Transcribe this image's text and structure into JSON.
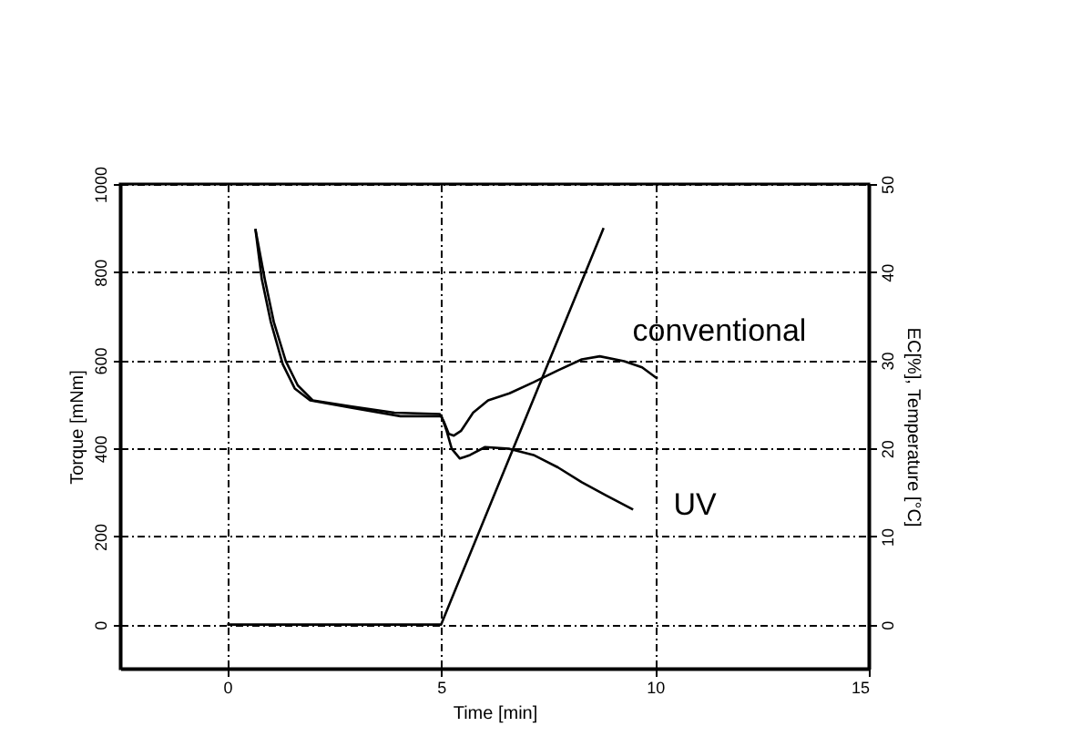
{
  "chart_data": {
    "type": "line",
    "xlabel": "Time [min]",
    "ylabel": "Torque [mNm]",
    "y2label": "EC[%], Temperature [°C]",
    "xlim": [
      -2.5,
      15
    ],
    "xticks": [
      0,
      5,
      10,
      15
    ],
    "ylim": [
      -100,
      1000
    ],
    "yticks": [
      0,
      200,
      400,
      600,
      800,
      1000
    ],
    "y2lim": [
      -5,
      50
    ],
    "y2ticks": [
      0,
      10,
      20,
      30,
      40,
      50
    ],
    "grid": true,
    "marker": "none",
    "line_style": "solid",
    "series": [
      {
        "name": "conventional",
        "color": "#000000",
        "x": [
          0.66,
          0.88,
          1.09,
          1.37,
          1.65,
          2.0,
          2.92,
          3.91,
          4.97,
          5.07,
          5.18,
          5.3,
          5.47,
          5.75,
          6.1,
          6.6,
          7.16,
          7.73,
          8.29,
          8.71,
          9.28,
          9.7,
          10.06
        ],
        "values": [
          898,
          784,
          687,
          598,
          543,
          509,
          495,
          481,
          478,
          460,
          433,
          429,
          440,
          481,
          509,
          525,
          550,
          577,
          602,
          609,
          598,
          584,
          558
        ]
      },
      {
        "name": "UV",
        "color": "#000000",
        "x": [
          0.66,
          0.81,
          1.02,
          1.3,
          1.58,
          1.94,
          2.92,
          4.05,
          5.01,
          5.13,
          5.25,
          5.44,
          5.68,
          6.03,
          6.6,
          7.16,
          7.73,
          8.29,
          8.86,
          9.49
        ],
        "values": [
          898,
          784,
          687,
          591,
          536,
          509,
          492,
          473,
          473,
          440,
          399,
          377,
          385,
          403,
          399,
          385,
          357,
          323,
          293,
          261
        ]
      },
      {
        "color": "#000000",
        "axis": "y2",
        "x": [
          0,
          5,
          8.8
        ],
        "values": [
          0,
          0,
          45
        ]
      }
    ]
  }
}
